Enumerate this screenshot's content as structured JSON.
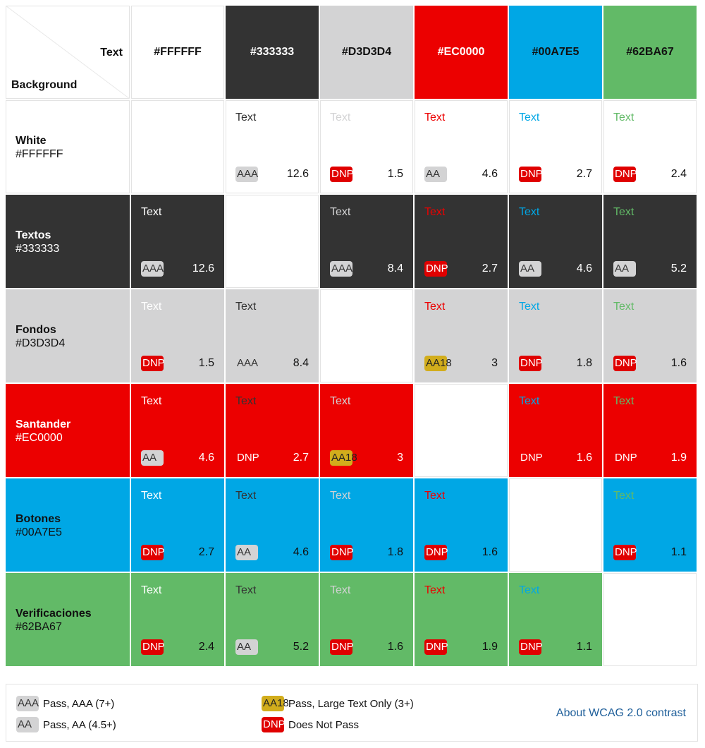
{
  "header": {
    "corner_text_label": "Text",
    "corner_background_label": "Background",
    "columns": [
      {
        "hex": "#FFFFFF",
        "bg": "#ffffff",
        "fg": "#111111"
      },
      {
        "hex": "#333333",
        "bg": "#333333",
        "fg": "#ffffff"
      },
      {
        "hex": "#D3D3D4",
        "bg": "#d3d3d4",
        "fg": "#111111"
      },
      {
        "hex": "#EC0000",
        "bg": "#ec0000",
        "fg": "#ffffff"
      },
      {
        "hex": "#00A7E5",
        "bg": "#00a7e5",
        "fg": "#111111"
      },
      {
        "hex": "#62BA67",
        "bg": "#62ba67",
        "fg": "#111111"
      }
    ]
  },
  "colors": {
    "white": "#ffffff",
    "textos": "#333333",
    "fondos": "#d3d3d4",
    "santander": "#ec0000",
    "botones": "#00a7e5",
    "verificaciones": "#62ba67"
  },
  "rows": [
    {
      "name": "White",
      "hex": "#FFFFFF",
      "bg": "#ffffff",
      "fg": "#111111",
      "cells": [
        null,
        {
          "text": "Text",
          "text_color": "#333333",
          "badge": "AAA",
          "rating": "aaa",
          "ratio": "12.6"
        },
        {
          "text": "Text",
          "text_color": "#d3d3d4",
          "badge": "DNP",
          "rating": "dnp",
          "ratio": "1.5"
        },
        {
          "text": "Text",
          "text_color": "#ec0000",
          "badge": "AA",
          "rating": "aa",
          "ratio": "4.6"
        },
        {
          "text": "Text",
          "text_color": "#00a7e5",
          "badge": "DNP",
          "rating": "dnp",
          "ratio": "2.7"
        },
        {
          "text": "Text",
          "text_color": "#62ba67",
          "badge": "DNP",
          "rating": "dnp",
          "ratio": "2.4"
        }
      ]
    },
    {
      "name": "Textos",
      "hex": "#333333",
      "bg": "#333333",
      "fg": "#ffffff",
      "cells": [
        {
          "text": "Text",
          "text_color": "#ffffff",
          "badge": "AAA",
          "rating": "aaa",
          "ratio": "12.6"
        },
        null,
        {
          "text": "Text",
          "text_color": "#d3d3d4",
          "badge": "AAA",
          "rating": "aaa",
          "ratio": "8.4"
        },
        {
          "text": "Text",
          "text_color": "#ec0000",
          "badge": "DNP",
          "rating": "dnp",
          "ratio": "2.7"
        },
        {
          "text": "Text",
          "text_color": "#00a7e5",
          "badge": "AA",
          "rating": "aa",
          "ratio": "4.6"
        },
        {
          "text": "Text",
          "text_color": "#62ba67",
          "badge": "AA",
          "rating": "aa",
          "ratio": "5.2"
        }
      ]
    },
    {
      "name": "Fondos",
      "hex": "#D3D3D4",
      "bg": "#d3d3d4",
      "fg": "#111111",
      "cells": [
        {
          "text": "Text",
          "text_color": "#ffffff",
          "badge": "DNP",
          "rating": "dnp",
          "ratio": "1.5"
        },
        {
          "text": "Text",
          "text_color": "#333333",
          "badge": "AAA",
          "rating": "aaa",
          "ratio": "8.4"
        },
        null,
        {
          "text": "Text",
          "text_color": "#ec0000",
          "badge": "AA18",
          "rating": "aa18",
          "ratio": "3"
        },
        {
          "text": "Text",
          "text_color": "#00a7e5",
          "badge": "DNP",
          "rating": "dnp",
          "ratio": "1.8"
        },
        {
          "text": "Text",
          "text_color": "#62ba67",
          "badge": "DNP",
          "rating": "dnp",
          "ratio": "1.6"
        }
      ]
    },
    {
      "name": "Santander",
      "hex": "#EC0000",
      "bg": "#ec0000",
      "fg": "#ffffff",
      "cells": [
        {
          "text": "Text",
          "text_color": "#ffffff",
          "badge": "AA",
          "rating": "aa",
          "ratio": "4.6"
        },
        {
          "text": "Text",
          "text_color": "#333333",
          "badge": "DNP",
          "rating": "dnp",
          "ratio": "2.7"
        },
        {
          "text": "Text",
          "text_color": "#d3d3d4",
          "badge": "AA18",
          "rating": "aa18",
          "ratio": "3"
        },
        null,
        {
          "text": "Text",
          "text_color": "#00a7e5",
          "badge": "DNP",
          "rating": "dnp",
          "ratio": "1.6"
        },
        {
          "text": "Text",
          "text_color": "#62ba67",
          "badge": "DNP",
          "rating": "dnp",
          "ratio": "1.9"
        }
      ]
    },
    {
      "name": "Botones",
      "hex": "#00A7E5",
      "bg": "#00a7e5",
      "fg": "#111111",
      "cells": [
        {
          "text": "Text",
          "text_color": "#ffffff",
          "badge": "DNP",
          "rating": "dnp",
          "ratio": "2.7"
        },
        {
          "text": "Text",
          "text_color": "#333333",
          "badge": "AA",
          "rating": "aa",
          "ratio": "4.6"
        },
        {
          "text": "Text",
          "text_color": "#d3d3d4",
          "badge": "DNP",
          "rating": "dnp",
          "ratio": "1.8"
        },
        {
          "text": "Text",
          "text_color": "#ec0000",
          "badge": "DNP",
          "rating": "dnp",
          "ratio": "1.6"
        },
        null,
        {
          "text": "Text",
          "text_color": "#62ba67",
          "badge": "DNP",
          "rating": "dnp",
          "ratio": "1.1"
        }
      ]
    },
    {
      "name": "Verificaciones",
      "hex": "#62BA67",
      "bg": "#62ba67",
      "fg": "#111111",
      "cells": [
        {
          "text": "Text",
          "text_color": "#ffffff",
          "badge": "DNP",
          "rating": "dnp",
          "ratio": "2.4"
        },
        {
          "text": "Text",
          "text_color": "#333333",
          "badge": "AA",
          "rating": "aa",
          "ratio": "5.2"
        },
        {
          "text": "Text",
          "text_color": "#d3d3d4",
          "badge": "DNP",
          "rating": "dnp",
          "ratio": "1.6"
        },
        {
          "text": "Text",
          "text_color": "#ec0000",
          "badge": "DNP",
          "rating": "dnp",
          "ratio": "1.9"
        },
        {
          "text": "Text",
          "text_color": "#00a7e5",
          "badge": "DNP",
          "rating": "dnp",
          "ratio": "1.1"
        },
        null
      ]
    }
  ],
  "badge_styles": {
    "aaa": {
      "bg": "#d3d3d4",
      "fg": "#333333"
    },
    "aa": {
      "bg": "#d3d3d4",
      "fg": "#333333"
    },
    "aa18": {
      "bg": "#d2ad1c",
      "fg": "#222222"
    },
    "dnp": {
      "bg": "#e00000",
      "fg": "#ffffff"
    }
  },
  "legend": {
    "aaa": {
      "badge": "AAA",
      "label": "Pass, AAA (7+)"
    },
    "aa": {
      "badge": "AA",
      "label": "Pass, AA (4.5+)"
    },
    "aa18": {
      "badge": "AA18",
      "label": "Pass, Large Text Only (3+)"
    },
    "dnp": {
      "badge": "DNP",
      "label": "Does Not Pass"
    },
    "about_link": "About WCAG 2.0 contrast"
  }
}
